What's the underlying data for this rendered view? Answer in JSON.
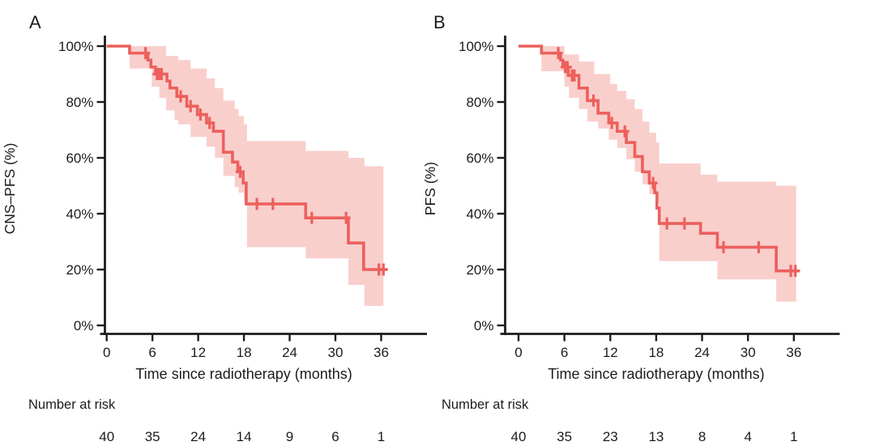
{
  "figure_type": "kaplan-meier-survival-figure",
  "style": {
    "background": "#ffffff",
    "curve_color": "#ec605d",
    "band_color": "#f9cfcc",
    "axis_color": "#1c1c1c",
    "text_color": "#1c1c1c"
  },
  "chart_data": [
    {
      "type": "line",
      "subtype": "kaplan-meier-step",
      "panel_label": "A",
      "ylabel": "CNS–PFS (%)",
      "xlabel": "Time since radiotherapy (months)",
      "x_ticks": [
        0,
        6,
        12,
        18,
        24,
        30,
        36
      ],
      "y_tick_values": [
        100,
        80,
        60,
        40,
        20,
        0
      ],
      "y_tick_labels": [
        "100%",
        "80%",
        "60%",
        "40%",
        "20%",
        "0%"
      ],
      "xlim": [
        0,
        42
      ],
      "ylim": [
        0,
        100
      ],
      "grid": false,
      "legend": "none",
      "survival_steps_pct": [
        [
          0,
          100
        ],
        [
          3,
          97.5
        ],
        [
          5.4,
          95
        ],
        [
          5.8,
          92.5
        ],
        [
          6.4,
          90
        ],
        [
          7.9,
          87.5
        ],
        [
          8.3,
          85
        ],
        [
          9.2,
          82
        ],
        [
          10.5,
          78.5
        ],
        [
          11.9,
          75.5
        ],
        [
          13.1,
          72.5
        ],
        [
          14,
          69.5
        ],
        [
          15.3,
          62
        ],
        [
          16.5,
          58.5
        ],
        [
          17.2,
          55
        ],
        [
          17.9,
          51
        ],
        [
          18.3,
          43.5
        ],
        [
          26.1,
          38.5
        ],
        [
          31.7,
          29.5
        ],
        [
          33.7,
          20
        ]
      ],
      "curve_end_month": 36.8,
      "censor_marks_pct": [
        [
          5.1,
          97.5
        ],
        [
          6.6,
          90
        ],
        [
          6.9,
          90
        ],
        [
          7.2,
          90
        ],
        [
          9.7,
          82
        ],
        [
          11,
          78.5
        ],
        [
          12.3,
          75.5
        ],
        [
          13.5,
          72.5
        ],
        [
          17.5,
          55
        ],
        [
          19.7,
          43.5
        ],
        [
          21.8,
          43.5
        ],
        [
          26.9,
          38.5
        ],
        [
          31.4,
          38.5
        ],
        [
          35.7,
          20
        ],
        [
          36.3,
          20
        ]
      ],
      "ci_upper_pct": [
        [
          3,
          100
        ],
        [
          7.8,
          96.5
        ],
        [
          9.4,
          95
        ],
        [
          11,
          92
        ],
        [
          13.1,
          88.5
        ],
        [
          14.2,
          85
        ],
        [
          15.3,
          80.5
        ],
        [
          16.8,
          77.5
        ],
        [
          17.3,
          75
        ],
        [
          18,
          72
        ],
        [
          18.4,
          66
        ],
        [
          26.1,
          62.5
        ],
        [
          31.7,
          60
        ],
        [
          33.8,
          57
        ]
      ],
      "ci_lower_pct": [
        [
          3,
          92
        ],
        [
          5.9,
          85.5
        ],
        [
          6.9,
          81.5
        ],
        [
          7.8,
          77
        ],
        [
          8.9,
          73.5
        ],
        [
          9.4,
          72
        ],
        [
          11,
          67.5
        ],
        [
          13.1,
          64
        ],
        [
          14.2,
          60
        ],
        [
          15.3,
          53.5
        ],
        [
          16.8,
          49.5
        ],
        [
          17.3,
          47.5
        ],
        [
          18,
          44.5
        ],
        [
          18.4,
          28
        ],
        [
          26.1,
          24
        ],
        [
          31.7,
          14.5
        ],
        [
          33.8,
          7
        ]
      ],
      "ci_end_month": 36.3,
      "number_at_risk": {
        "label": "Number at risk",
        "times": [
          0,
          6,
          12,
          18,
          24,
          30,
          36
        ],
        "counts": [
          40,
          35,
          24,
          14,
          9,
          6,
          1
        ]
      }
    },
    {
      "type": "line",
      "subtype": "kaplan-meier-step",
      "panel_label": "B",
      "ylabel": "PFS (%)",
      "xlabel": "Time since radiotherapy (months)",
      "x_ticks": [
        0,
        6,
        12,
        18,
        24,
        30,
        36
      ],
      "y_tick_values": [
        100,
        80,
        60,
        40,
        20,
        0
      ],
      "y_tick_labels": [
        "100%",
        "80%",
        "60%",
        "40%",
        "20%",
        "0%"
      ],
      "xlim": [
        0,
        42
      ],
      "ylim": [
        0,
        100
      ],
      "grid": false,
      "legend": "none",
      "survival_steps_pct": [
        [
          0,
          100
        ],
        [
          3,
          97.5
        ],
        [
          5.5,
          95
        ],
        [
          5.8,
          92.5
        ],
        [
          6.5,
          89.5
        ],
        [
          7.9,
          85
        ],
        [
          9,
          80.5
        ],
        [
          10.4,
          76
        ],
        [
          11.8,
          72.5
        ],
        [
          12.9,
          69.5
        ],
        [
          14.1,
          65.5
        ],
        [
          15.2,
          60.5
        ],
        [
          16.2,
          55
        ],
        [
          17.1,
          51
        ],
        [
          17.8,
          47.5
        ],
        [
          18.1,
          42
        ],
        [
          18.4,
          36.5
        ],
        [
          23.8,
          33
        ],
        [
          26,
          28
        ],
        [
          33.7,
          19.5
        ]
      ],
      "curve_end_month": 36.8,
      "censor_marks_pct": [
        [
          5.2,
          97.5
        ],
        [
          6.1,
          92.5
        ],
        [
          6.4,
          92.5
        ],
        [
          7,
          89.5
        ],
        [
          7.3,
          89.5
        ],
        [
          9.8,
          80.5
        ],
        [
          12.2,
          72.5
        ],
        [
          13.9,
          69.5
        ],
        [
          17.6,
          51
        ],
        [
          19.4,
          36.5
        ],
        [
          21.7,
          36.5
        ],
        [
          26.8,
          28
        ],
        [
          31.4,
          28
        ],
        [
          35.6,
          19.5
        ],
        [
          36.2,
          19.5
        ]
      ],
      "ci_upper_pct": [
        [
          3,
          100
        ],
        [
          6,
          97
        ],
        [
          7.9,
          94.5
        ],
        [
          9.9,
          90
        ],
        [
          12,
          86.5
        ],
        [
          12.9,
          84
        ],
        [
          14.1,
          81
        ],
        [
          15.2,
          77.5
        ],
        [
          16.2,
          73
        ],
        [
          17.1,
          69
        ],
        [
          18,
          65.5
        ],
        [
          18.4,
          58
        ],
        [
          23.8,
          54
        ],
        [
          26,
          51.5
        ],
        [
          33.7,
          50
        ]
      ],
      "ci_lower_pct": [
        [
          3,
          91
        ],
        [
          6,
          85.5
        ],
        [
          6.6,
          81.5
        ],
        [
          7.9,
          77.5
        ],
        [
          9,
          73
        ],
        [
          10.4,
          70.5
        ],
        [
          11.8,
          66.5
        ],
        [
          12.9,
          63.5
        ],
        [
          14.1,
          59.5
        ],
        [
          15.2,
          55
        ],
        [
          16.2,
          50.5
        ],
        [
          17.1,
          47
        ],
        [
          18,
          44
        ],
        [
          18.4,
          23
        ],
        [
          26,
          16.5
        ],
        [
          33.7,
          8.5
        ]
      ],
      "ci_end_month": 36.3,
      "number_at_risk": {
        "label": "Number at risk",
        "times": [
          0,
          6,
          12,
          18,
          24,
          30,
          36
        ],
        "counts": [
          40,
          35,
          23,
          13,
          8,
          4,
          1
        ]
      }
    }
  ]
}
